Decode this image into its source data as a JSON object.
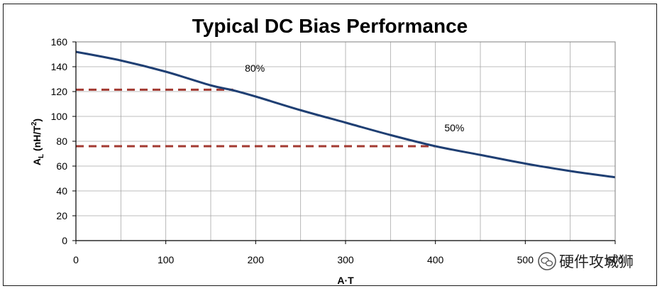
{
  "chart_data": {
    "type": "line",
    "title": "Typical DC Bias Performance",
    "xlabel": "A·T",
    "ylabel_main": "A",
    "ylabel_sub": "L",
    "ylabel_unit": " (nH/T",
    "ylabel_sup": "2",
    "ylabel_close": ")",
    "xlim": [
      0,
      600
    ],
    "ylim": [
      0,
      160
    ],
    "x_ticks": [
      0,
      100,
      200,
      300,
      400,
      500,
      600
    ],
    "x_tick_labels": [
      "0",
      "100",
      "200",
      "300",
      "400",
      "500",
      "600"
    ],
    "y_ticks": [
      0,
      20,
      40,
      60,
      80,
      100,
      120,
      140,
      160
    ],
    "y_tick_labels": [
      "0",
      "20",
      "40",
      "60",
      "80",
      "100",
      "120",
      "140",
      "160"
    ],
    "grid": true,
    "line_color": "#1f3f73",
    "reference_color": "#a33a32",
    "series": [
      {
        "x": [
          0,
          50,
          100,
          150,
          175,
          200,
          250,
          300,
          350,
          400,
          450,
          500,
          550,
          600
        ],
        "y": [
          152,
          145,
          136,
          125,
          121,
          116,
          105,
          95,
          85,
          76,
          69,
          62,
          56,
          51
        ]
      }
    ],
    "reference_lines": [
      {
        "y": 121.5,
        "x_end": 175
      },
      {
        "y": 76,
        "x_end": 400
      }
    ],
    "annotations": [
      {
        "text": "80%",
        "x": 188,
        "y": 136
      },
      {
        "text": "50%",
        "x": 410,
        "y": 88
      }
    ]
  },
  "watermark": {
    "text": "硬件攻城狮",
    "icon": "wechat-icon"
  }
}
